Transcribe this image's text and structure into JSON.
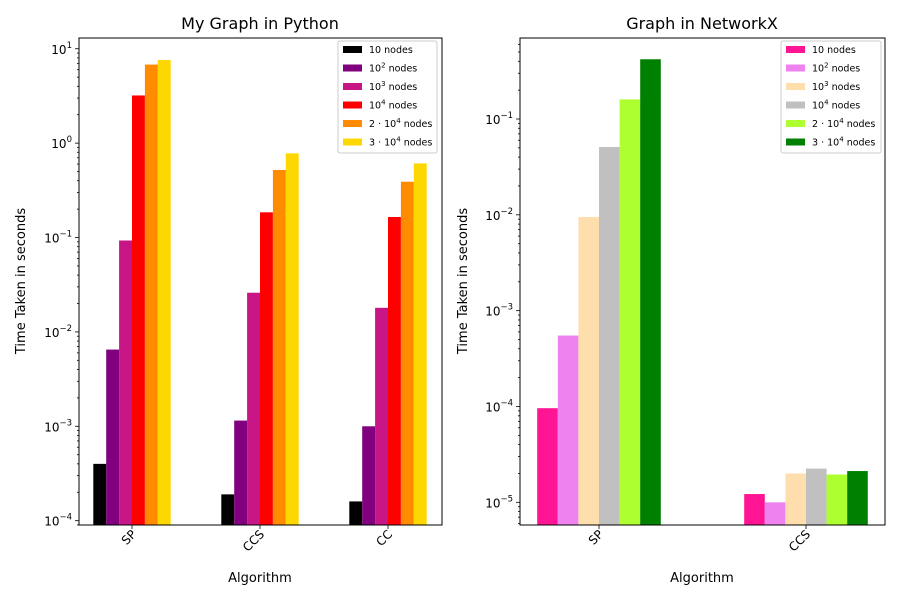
{
  "chart_data": [
    {
      "type": "bar",
      "title": "My Graph in Python",
      "xlabel": "Algorithm",
      "ylabel": "Time Taken in seconds",
      "yscale": "log",
      "ylim": [
        9e-05,
        13
      ],
      "yticks": [
        {
          "value": 0.0001,
          "base": "10",
          "exp": "−4"
        },
        {
          "value": 0.001,
          "base": "10",
          "exp": "−3"
        },
        {
          "value": 0.01,
          "base": "10",
          "exp": "−2"
        },
        {
          "value": 0.1,
          "base": "10",
          "exp": "−1"
        },
        {
          "value": 1,
          "base": "10",
          "exp": "0"
        },
        {
          "value": 10,
          "base": "10",
          "exp": "1"
        }
      ],
      "categories": [
        "SP",
        "CCS",
        "CC"
      ],
      "legend_position": "upper right",
      "series": [
        {
          "name": "10 nodes",
          "name_base": "10 nodes",
          "name_sup": "",
          "name_rest": "",
          "color": "#000000",
          "values": [
            0.0004,
            0.00019,
            0.00016
          ]
        },
        {
          "name": "10^2 nodes",
          "name_base": "10",
          "name_sup": "2",
          "name_rest": " nodes",
          "color": "#800080",
          "values": [
            0.0065,
            0.00115,
            0.001
          ]
        },
        {
          "name": "10^3 nodes",
          "name_base": "10",
          "name_sup": "3",
          "name_rest": " nodes",
          "color": "#c71585",
          "values": [
            0.093,
            0.026,
            0.018
          ]
        },
        {
          "name": "10^4 nodes",
          "name_base": "10",
          "name_sup": "4",
          "name_rest": " nodes",
          "color": "#ff0000",
          "values": [
            3.2,
            0.185,
            0.165
          ]
        },
        {
          "name": "2·10^4 nodes",
          "name_base": "2 · 10",
          "name_sup": "4",
          "name_rest": " nodes",
          "color": "#ff8c00",
          "values": [
            6.8,
            0.52,
            0.39
          ]
        },
        {
          "name": "3·10^4 nodes",
          "name_base": "3 · 10",
          "name_sup": "4",
          "name_rest": " nodes",
          "color": "#ffd700",
          "values": [
            7.6,
            0.78,
            0.61
          ]
        }
      ]
    },
    {
      "type": "bar",
      "title": "Graph in NetworkX",
      "xlabel": "Algorithm",
      "ylabel": "Time Taken in seconds",
      "yscale": "log",
      "ylim": [
        5.8e-06,
        0.7
      ],
      "yticks": [
        {
          "value": 1e-05,
          "base": "10",
          "exp": "−5"
        },
        {
          "value": 0.0001,
          "base": "10",
          "exp": "−4"
        },
        {
          "value": 0.001,
          "base": "10",
          "exp": "−3"
        },
        {
          "value": 0.01,
          "base": "10",
          "exp": "−2"
        },
        {
          "value": 0.1,
          "base": "10",
          "exp": "−1"
        }
      ],
      "categories": [
        "SP",
        "CCS"
      ],
      "legend_position": "upper right",
      "series": [
        {
          "name": "10 nodes",
          "name_base": "10 nodes",
          "name_sup": "",
          "name_rest": "",
          "color": "#ff1493",
          "values": [
            9.6e-05,
            1.22e-05
          ]
        },
        {
          "name": "10^2 nodes",
          "name_base": "10",
          "name_sup": "2",
          "name_rest": " nodes",
          "color": "#ee82ee",
          "values": [
            0.00055,
            1e-05
          ]
        },
        {
          "name": "10^3 nodes",
          "name_base": "10",
          "name_sup": "3",
          "name_rest": " nodes",
          "color": "#ffdead",
          "values": [
            0.0095,
            2e-05
          ]
        },
        {
          "name": "10^4 nodes",
          "name_base": "10",
          "name_sup": "4",
          "name_rest": " nodes",
          "color": "#c0c0c0",
          "values": [
            0.051,
            2.25e-05
          ]
        },
        {
          "name": "2·10^4 nodes",
          "name_base": "2 · 10",
          "name_sup": "4",
          "name_rest": " nodes",
          "color": "#adff2f",
          "values": [
            0.16,
            1.95e-05
          ]
        },
        {
          "name": "3·10^4 nodes",
          "name_base": "3 · 10",
          "name_sup": "4",
          "name_rest": " nodes",
          "color": "#008000",
          "values": [
            0.42,
            2.12e-05
          ]
        }
      ]
    }
  ]
}
